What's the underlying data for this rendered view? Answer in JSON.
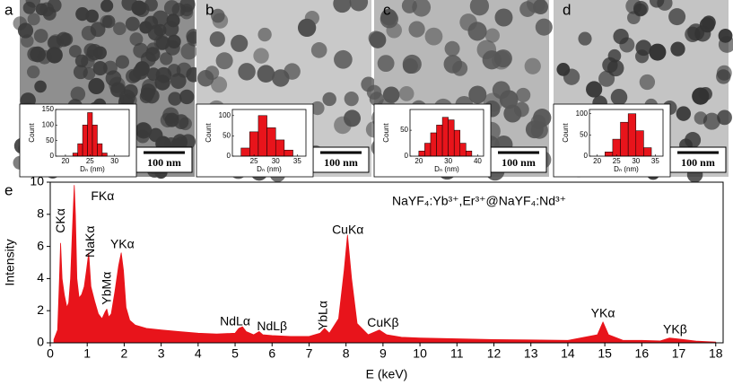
{
  "chart_data": [
    {
      "type": "histogram",
      "panel_label": "a",
      "scale_bar": "100 nm",
      "xlabel": "Dₙ (nm)",
      "ylabel": "Count",
      "bins": [
        21.5,
        22.5,
        23.5,
        24.5,
        25.5,
        26.5,
        27.5,
        28.5
      ],
      "values": [
        10,
        40,
        100,
        140,
        100,
        40,
        10
      ],
      "color": "#e8141b",
      "xlim": [
        18,
        33
      ],
      "ylim": [
        0,
        150
      ],
      "xticks": [
        20,
        25,
        30
      ],
      "yticks": [
        0,
        50,
        100,
        150
      ]
    },
    {
      "type": "histogram",
      "panel_label": "b",
      "scale_bar": "100 nm",
      "xlabel": "Dₙ (nm)",
      "ylabel": "Count",
      "bins": [
        22,
        24,
        26,
        28,
        30,
        32,
        34
      ],
      "values": [
        20,
        60,
        100,
        70,
        40,
        15
      ],
      "color": "#e8141b",
      "xlim": [
        20,
        37
      ],
      "ylim": [
        0,
        115
      ],
      "xticks": [
        25,
        30,
        35
      ],
      "yticks": [
        0,
        50,
        100
      ]
    },
    {
      "type": "histogram",
      "panel_label": "c",
      "scale_bar": "100 nm",
      "xlabel": "Dₙ (nm)",
      "ylabel": "Count",
      "bins": [
        20,
        22,
        24,
        26,
        28,
        30,
        32,
        34,
        36,
        38
      ],
      "values": [
        10,
        25,
        45,
        60,
        75,
        70,
        50,
        25,
        10
      ],
      "color": "#e8141b",
      "xlim": [
        17,
        42
      ],
      "ylim": [
        0,
        90
      ],
      "xticks": [
        20,
        30,
        40
      ],
      "yticks": [
        0,
        50
      ]
    },
    {
      "type": "histogram",
      "panel_label": "d",
      "scale_bar": "100 nm",
      "xlabel": "Dₙ (nm)",
      "ylabel": "Count",
      "bins": [
        22,
        24,
        26,
        28,
        30,
        32,
        34
      ],
      "values": [
        10,
        40,
        80,
        100,
        60,
        20
      ],
      "color": "#e8141b",
      "xlim": [
        18,
        37
      ],
      "ylim": [
        0,
        110
      ],
      "xticks": [
        20,
        25,
        30,
        35
      ],
      "yticks": [
        0,
        50,
        100
      ]
    },
    {
      "type": "area",
      "panel_label": "e",
      "title": "NaYF₄:Yb³⁺,Er³⁺@NaYF₄:Nd³⁺",
      "xlabel": "E (keV)",
      "ylabel": "Intensity",
      "color": "#e8141b",
      "xlim": [
        0,
        18.2
      ],
      "ylim": [
        0,
        10
      ],
      "xticks": [
        0,
        1,
        2,
        3,
        4,
        5,
        6,
        7,
        8,
        9,
        10,
        11,
        12,
        13,
        14,
        15,
        16,
        17,
        18
      ],
      "yticks": [
        0,
        2,
        4,
        6,
        8,
        10
      ],
      "x": [
        0.1,
        0.2,
        0.25,
        0.28,
        0.32,
        0.38,
        0.45,
        0.5,
        0.55,
        0.6,
        0.65,
        0.68,
        0.72,
        0.78,
        0.85,
        0.92,
        0.98,
        1.04,
        1.1,
        1.2,
        1.3,
        1.4,
        1.48,
        1.53,
        1.58,
        1.65,
        1.75,
        1.85,
        1.92,
        1.98,
        2.05,
        2.15,
        2.3,
        2.6,
        3,
        3.5,
        4,
        4.5,
        5,
        5.1,
        5.2,
        5.3,
        5.5,
        5.65,
        5.75,
        6,
        6.5,
        7,
        7.3,
        7.42,
        7.55,
        7.8,
        7.95,
        8.04,
        8.15,
        8.3,
        8.6,
        8.9,
        9.1,
        9.5,
        10,
        11,
        12,
        13,
        14,
        14.8,
        14.95,
        15.1,
        15.5,
        16,
        16.5,
        16.75,
        16.95,
        17.5,
        18
      ],
      "values": [
        0.2,
        0.8,
        4,
        6.2,
        4,
        3,
        2.2,
        2.5,
        4,
        7,
        9.8,
        8,
        4,
        2.8,
        3,
        3.5,
        4.5,
        5.6,
        3.5,
        2.6,
        1.8,
        1.5,
        1.9,
        2.1,
        1.6,
        1.8,
        3.2,
        4.8,
        5.6,
        4.5,
        2.2,
        1.4,
        1.1,
        0.9,
        0.8,
        0.7,
        0.6,
        0.55,
        0.6,
        0.9,
        1,
        0.7,
        0.5,
        0.7,
        0.5,
        0.45,
        0.4,
        0.4,
        0.6,
        0.9,
        0.6,
        1.5,
        4.5,
        6.7,
        4,
        1.2,
        0.5,
        0.8,
        0.5,
        0.35,
        0.3,
        0.25,
        0.2,
        0.18,
        0.15,
        0.5,
        1.3,
        0.5,
        0.15,
        0.15,
        0.12,
        0.3,
        0.25,
        0.1,
        0.05
      ],
      "annotations": [
        {
          "text": "CKα",
          "x": 0.3,
          "y": 7.6,
          "rotated": true
        },
        {
          "text": "FKα",
          "x": 1.1,
          "y": 9.1,
          "rotated": false
        },
        {
          "text": "NaKα",
          "x": 1.1,
          "y": 6.3,
          "rotated": true
        },
        {
          "text": "YbMα",
          "x": 1.55,
          "y": 3.4,
          "rotated": true
        },
        {
          "text": "YKα",
          "x": 1.95,
          "y": 6.1,
          "rotated": false
        },
        {
          "text": "NdLα",
          "x": 5.0,
          "y": 1.3,
          "rotated": false
        },
        {
          "text": "NdLβ",
          "x": 6.0,
          "y": 1.0,
          "rotated": false
        },
        {
          "text": "YbLα",
          "x": 7.4,
          "y": 1.7,
          "rotated": true
        },
        {
          "text": "CuKα",
          "x": 8.05,
          "y": 7.0,
          "rotated": false
        },
        {
          "text": "CuKβ",
          "x": 9.0,
          "y": 1.2,
          "rotated": false
        },
        {
          "text": "YKα",
          "x": 14.95,
          "y": 1.8,
          "rotated": false
        },
        {
          "text": "YKβ",
          "x": 16.9,
          "y": 0.8,
          "rotated": false
        }
      ]
    }
  ]
}
